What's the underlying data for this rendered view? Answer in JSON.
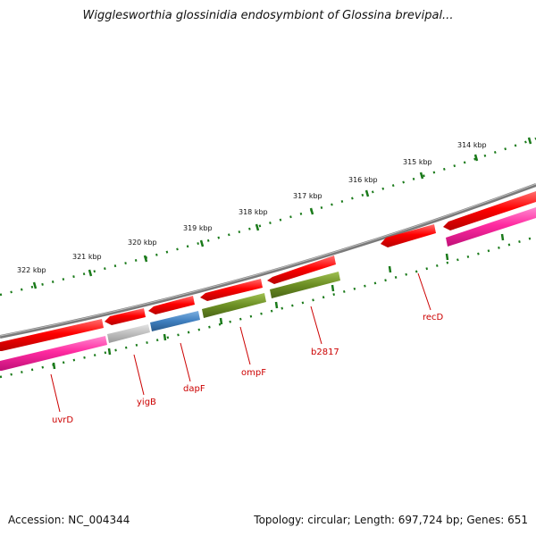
{
  "title": "Wigglesworthia glossinidia endosymbiont of Glossina brevipal...",
  "footer": {
    "accession": "Accession: NC_004344",
    "stats": "Topology: circular; Length: 697,724 bp; Genes: 651"
  },
  "ruler": {
    "labels": [
      "322 kbp",
      "321 kbp",
      "320 kbp",
      "319 kbp",
      "318 kbp",
      "317 kbp",
      "316 kbp",
      "315 kbp",
      "314 kbp"
    ]
  },
  "genes": [
    {
      "name": "uvrD",
      "color": "#ff3ca8",
      "strand": "minus"
    },
    {
      "name": "yigB",
      "color": "#c0c0c0",
      "strand": "minus"
    },
    {
      "name": "dapF",
      "color": "#3f7fbf",
      "strand": "minus"
    },
    {
      "name": "ompF",
      "color": "#6b8e23",
      "strand": "minus"
    },
    {
      "name": "b2817",
      "color": "#6b8e23",
      "strand": "minus"
    },
    {
      "name": "recD",
      "color": "#ff0000",
      "strand": "plus"
    }
  ],
  "colors": {
    "backbone": "#808080",
    "ruler": "#1a7a1a",
    "forward_gene": "#ff0000",
    "label": "#cc0000"
  }
}
